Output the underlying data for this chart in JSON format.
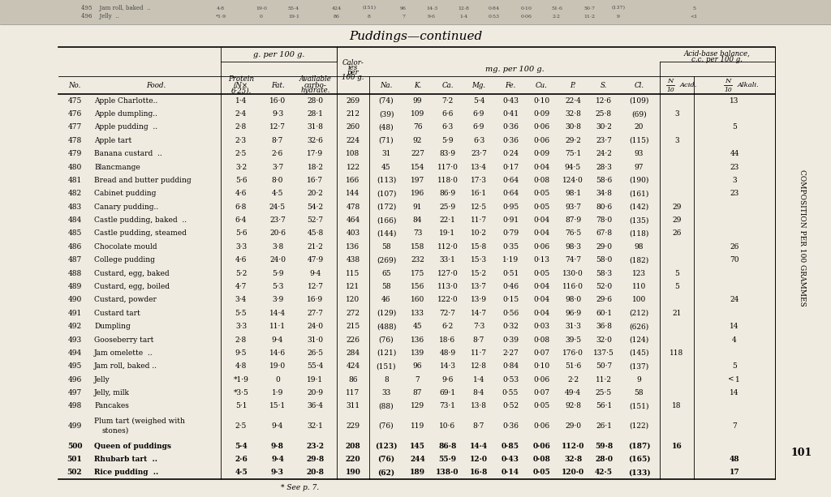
{
  "title": "Puddings—continued",
  "footnote": "* See p. 7.",
  "side_text": "COMPOSITION PER 100 GRAMMES",
  "page_num": "101",
  "bg_color": "#f0ebe0",
  "top_strip_color": "#d8d3c8",
  "rows": [
    [
      "475",
      "Apple Charlotte..",
      "1·4",
      "16·0",
      "28·0",
      "269",
      "(74)",
      "99",
      "7·2",
      "5·4",
      "0·43",
      "0·10",
      "22·4",
      "12·6",
      "(109)",
      "",
      "13"
    ],
    [
      "476",
      "Apple dumpling..",
      "2·4",
      "9·3",
      "28·1",
      "212",
      "(39)",
      "109",
      "6·6",
      "6·9",
      "0·41",
      "0·09",
      "32·8",
      "25·8",
      "(69)",
      "3",
      ""
    ],
    [
      "477",
      "Apple pudding  ..",
      "2·8",
      "12·7",
      "31·8",
      "260",
      "(48)",
      "76",
      "6·3",
      "6·9",
      "0·36",
      "0·06",
      "30·8",
      "30·2",
      "20",
      "",
      "5"
    ],
    [
      "478",
      "Apple tart",
      "2·3",
      "8·7",
      "32·6",
      "224",
      "(71)",
      "92",
      "5·9",
      "6·3",
      "0·36",
      "0·06",
      "29·2",
      "23·7",
      "(115)",
      "3",
      ""
    ],
    [
      "479",
      "Banana custard  ..",
      "2·5",
      "2·6",
      "17·9",
      "108",
      "31",
      "227",
      "83·9",
      "23·7",
      "0·24",
      "0·09",
      "75·1",
      "24·2",
      "93",
      "",
      "44"
    ],
    [
      "480",
      "Blancmange",
      "3·2",
      "3·7",
      "18·2",
      "122",
      "45",
      "154",
      "117·0",
      "13·4",
      "0·17",
      "0·04",
      "94·5",
      "28·3",
      "97",
      "",
      "23"
    ],
    [
      "481",
      "Bread and butter pudding",
      "5·6",
      "8·0",
      "16·7",
      "166",
      "(113)",
      "197",
      "118·0",
      "17·3",
      "0·64",
      "0·08",
      "124·0",
      "58·6",
      "(190)",
      "",
      "3"
    ],
    [
      "482",
      "Cabinet pudding",
      "4·6",
      "4·5",
      "20·2",
      "144",
      "(107)",
      "196",
      "86·9",
      "16·1",
      "0·64",
      "0·05",
      "98·1",
      "34·8",
      "(161)",
      "",
      "23"
    ],
    [
      "483",
      "Canary pudding..",
      "6·8",
      "24·5",
      "54·2",
      "478",
      "(172)",
      "91",
      "25·9",
      "12·5",
      "0·95",
      "0·05",
      "93·7",
      "80·6",
      "(142)",
      "29",
      ""
    ],
    [
      "484",
      "Castle pudding, baked  ..",
      "6·4",
      "23·7",
      "52·7",
      "464",
      "(166)",
      "84",
      "22·1",
      "11·7",
      "0·91",
      "0·04",
      "87·9",
      "78·0",
      "(135)",
      "29",
      ""
    ],
    [
      "485",
      "Castle pudding, steamed",
      "5·6",
      "20·6",
      "45·8",
      "403",
      "(144)",
      "73",
      "19·1",
      "10·2",
      "0·79",
      "0·04",
      "76·5",
      "67·8",
      "(118)",
      "26",
      ""
    ],
    [
      "486",
      "Chocolate mould",
      "3·3",
      "3·8",
      "21·2",
      "136",
      "58",
      "158",
      "112·0",
      "15·8",
      "0·35",
      "0·06",
      "98·3",
      "29·0",
      "98",
      "",
      "26"
    ],
    [
      "487",
      "College pudding",
      "4·6",
      "24·0",
      "47·9",
      "438",
      "(269)",
      "232",
      "33·1",
      "15·3",
      "1·19",
      "0·13",
      "74·7",
      "58·0",
      "(182)",
      "",
      "70"
    ],
    [
      "488",
      "Custard, egg, baked",
      "5·2",
      "5·9",
      "9·4",
      "115",
      "65",
      "175",
      "127·0",
      "15·2",
      "0·51",
      "0·05",
      "130·0",
      "58·3",
      "123",
      "5",
      ""
    ],
    [
      "489",
      "Custard, egg, boiled",
      "4·7",
      "5·3",
      "12·7",
      "121",
      "58",
      "156",
      "113·0",
      "13·7",
      "0·46",
      "0·04",
      "116·0",
      "52·0",
      "110",
      "5",
      ""
    ],
    [
      "490",
      "Custard, powder",
      "3·4",
      "3·9",
      "16·9",
      "120",
      "46",
      "160",
      "122·0",
      "13·9",
      "0·15",
      "0·04",
      "98·0",
      "29·6",
      "100",
      "",
      "24"
    ],
    [
      "491",
      "Custard tart",
      "5·5",
      "14·4",
      "27·7",
      "272",
      "(129)",
      "133",
      "72·7",
      "14·7",
      "0·56",
      "0·04",
      "96·9",
      "60·1",
      "(212)",
      "21",
      ""
    ],
    [
      "492",
      "Dumpling",
      "3·3",
      "11·1",
      "24·0",
      "215",
      "(488)",
      "45",
      "6·2",
      "7·3",
      "0·32",
      "0·03",
      "31·3",
      "36·8",
      "(626)",
      "",
      "14"
    ],
    [
      "493",
      "Gooseberry tart",
      "2·8",
      "9·4",
      "31·0",
      "226",
      "(76)",
      "136",
      "18·6",
      "8·7",
      "0·39",
      "0·08",
      "39·5",
      "32·0",
      "(124)",
      "",
      "4"
    ],
    [
      "494",
      "Jam omelette  ..",
      "9·5",
      "14·6",
      "26·5",
      "284",
      "(121)",
      "139",
      "48·9",
      "11·7",
      "2·27",
      "0·07",
      "176·0",
      "137·5",
      "(145)",
      "118",
      ""
    ],
    [
      "495",
      "Jam roll, baked ..",
      "4·8",
      "19·0",
      "55·4",
      "424",
      "(151)",
      "96",
      "14·3",
      "12·8",
      "0·84",
      "0·10",
      "51·6",
      "50·7",
      "(137)",
      "",
      "5"
    ],
    [
      "496",
      "Jelly",
      "*1·9",
      "0",
      "19·1",
      "86",
      "8",
      "7",
      "9·6",
      "1·4",
      "0·53",
      "0·06",
      "2·2",
      "11·2",
      "9",
      "",
      "<1"
    ],
    [
      "497",
      "Jelly, milk",
      "*3·5",
      "1·9",
      "20·9",
      "117",
      "33",
      "87",
      "69·1",
      "8·4",
      "0·55",
      "0·07",
      "49·4",
      "25·5",
      "58",
      "",
      "14"
    ],
    [
      "498",
      "Pancakes",
      "5·1",
      "15·1",
      "36·4",
      "311",
      "(88)",
      "129",
      "73·1",
      "13·8",
      "0·52",
      "0·05",
      "92·8",
      "56·1",
      "(151)",
      "18",
      ""
    ],
    [
      "499",
      "Plum tart (weighed with\nstones)",
      "2·5",
      "9·4",
      "32·1",
      "229",
      "(76)",
      "119",
      "10·6",
      "8·7",
      "0·36",
      "0·06",
      "29·0",
      "26·1",
      "(122)",
      "",
      "7"
    ],
    [
      "500",
      "Queen of puddings",
      "5·4",
      "9·8",
      "23·2",
      "208",
      "(123)",
      "145",
      "86·8",
      "14·4",
      "0·85",
      "0·06",
      "112·0",
      "59·8",
      "(187)",
      "16",
      ""
    ],
    [
      "501",
      "Rhubarb tart  ..",
      "2·6",
      "9·4",
      "29·8",
      "220",
      "(76)",
      "244",
      "55·9",
      "12·0",
      "0·43",
      "0·08",
      "32·8",
      "28·0",
      "(165)",
      "",
      "48"
    ],
    [
      "502",
      "Rice pudding  ..",
      "4·5",
      "9·3",
      "20·8",
      "190",
      "(62)",
      "189",
      "138·0",
      "16·8",
      "0·14",
      "0·05",
      "120·0",
      "42·5",
      "(133)",
      "",
      "17"
    ]
  ],
  "bold_rows": [
    500,
    501,
    502
  ],
  "top_strip_rows": [
    [
      "495",
      "Jam roll, baked  ..",
      "4·8",
      "19·0",
      "55·4",
      "424",
      "(151)",
      "96",
      "14·3",
      "12·8",
      "0·84",
      "0·10",
      "51·6",
      "50·7",
      "(137)",
      "",
      "5"
    ],
    [
      "496",
      "Jelly",
      "*1·9",
      "0",
      "19·1",
      "86",
      "8",
      "7",
      "9·6",
      "1·4",
      "0·53",
      "0·06",
      "2·2",
      "11·2",
      "9",
      "",
      "<1"
    ]
  ]
}
